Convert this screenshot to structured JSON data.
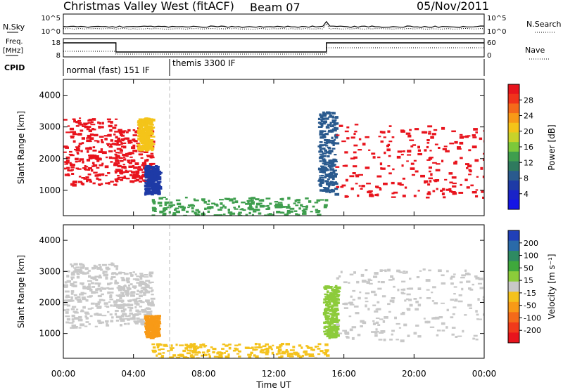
{
  "header": {
    "station": "Christmas Valley West (fitACF)",
    "beam": "Beam 07",
    "date": "05/Nov/2011"
  },
  "top_panels": {
    "nsky_label": "N.Sky",
    "nsky_ticks": [
      "10^5",
      "10^0"
    ],
    "nsearch_label": "N.Search",
    "nsearch_ticks": [
      "10^5",
      "10^0"
    ],
    "freq_label_1": "Freq.",
    "freq_label_2": "[MHz]",
    "freq_ticks": [
      "18",
      "8"
    ],
    "nave_label": "Nave",
    "nave_ticks": [
      "60",
      "0"
    ],
    "cpid_label": "CPID",
    "cpid_modes": [
      "normal (fast) 151 IF",
      "themis 3300 IF"
    ]
  },
  "colorbars": {
    "power": {
      "label": "Power [dB]",
      "ticks": [
        "28",
        "24",
        "20",
        "16",
        "12",
        "8",
        "4"
      ],
      "colors": [
        "#e8141d",
        "#f0331b",
        "#f46a1a",
        "#f89a17",
        "#f4c419",
        "#c8d22a",
        "#7cc83a",
        "#3f9e4e",
        "#2f7a5e",
        "#2a5a8e",
        "#1e3aa6",
        "#1a23c8",
        "#1414e6"
      ]
    },
    "velocity": {
      "label": "Velocity [m s⁻¹]",
      "ticks": [
        "200",
        "100",
        "50",
        "15",
        "-15",
        "-50",
        "-100",
        "-200"
      ],
      "colors": [
        "#2140b8",
        "#2a6aa8",
        "#2e8a62",
        "#3fa83c",
        "#8ccb3a",
        "#c8c8c8",
        "#f4c21c",
        "#f89a17",
        "#f46a1a",
        "#f03a1b",
        "#e8141d"
      ]
    }
  },
  "chart_data": [
    {
      "type": "heatmap",
      "title": "Power",
      "ylabel": "Slant Range [km]",
      "xlabel": "",
      "yticks": [
        "4000",
        "3000",
        "2000",
        "1000"
      ],
      "ylim": [
        200,
        4500
      ],
      "xlim": [
        "00:00",
        "24:00"
      ],
      "mode_change": "06:00",
      "regions": [
        {
          "t": [
            0.0,
            3.0
          ],
          "r": [
            1200,
            3300
          ],
          "v": 27,
          "color": "#e8141d"
        },
        {
          "t": [
            2.9,
            5.0
          ],
          "r": [
            1300,
            3000
          ],
          "v": 24,
          "color": "#e8141d"
        },
        {
          "t": [
            4.2,
            5.0
          ],
          "r": [
            2300,
            3300
          ],
          "v": 16,
          "color": "#f4c419"
        },
        {
          "t": [
            4.6,
            5.4
          ],
          "r": [
            900,
            1800
          ],
          "v": 6,
          "color": "#1e3aa6"
        },
        {
          "t": [
            5.0,
            15.0
          ],
          "r": [
            200,
            800
          ],
          "v": 14,
          "color": "#3f9e4e"
        },
        {
          "t": [
            14.5,
            15.5
          ],
          "r": [
            900,
            3500
          ],
          "v": 8,
          "color": "#2a5a8e"
        },
        {
          "t": [
            15.5,
            24.0
          ],
          "r": [
            800,
            3100
          ],
          "v": 28,
          "color": "#e8141d"
        }
      ]
    },
    {
      "type": "heatmap",
      "title": "Velocity",
      "ylabel": "Slant Range [km]",
      "xlabel": "Time UT",
      "xticks": [
        "00:00",
        "04:00",
        "08:00",
        "12:00",
        "16:00",
        "20:00",
        "00:00"
      ],
      "yticks": [
        "4000",
        "3000",
        "2000",
        "1000"
      ],
      "ylim": [
        200,
        4500
      ],
      "xlim": [
        "00:00",
        "24:00"
      ],
      "regions": [
        {
          "t": [
            0.0,
            3.0
          ],
          "r": [
            1200,
            3300
          ],
          "v": 0,
          "color": "#c8c8c8"
        },
        {
          "t": [
            2.9,
            5.0
          ],
          "r": [
            1300,
            3000
          ],
          "v": 0,
          "color": "#c8c8c8"
        },
        {
          "t": [
            4.6,
            5.4
          ],
          "r": [
            900,
            1600
          ],
          "v": -60,
          "color": "#f89a17"
        },
        {
          "t": [
            5.0,
            15.0
          ],
          "r": [
            200,
            700
          ],
          "v": -40,
          "color": "#f4c21c"
        },
        {
          "t": [
            14.8,
            15.6
          ],
          "r": [
            900,
            2600
          ],
          "v": 40,
          "color": "#8ccb3a"
        },
        {
          "t": [
            15.5,
            24.0
          ],
          "r": [
            800,
            3100
          ],
          "v": 0,
          "color": "#c8c8c8"
        }
      ]
    }
  ]
}
